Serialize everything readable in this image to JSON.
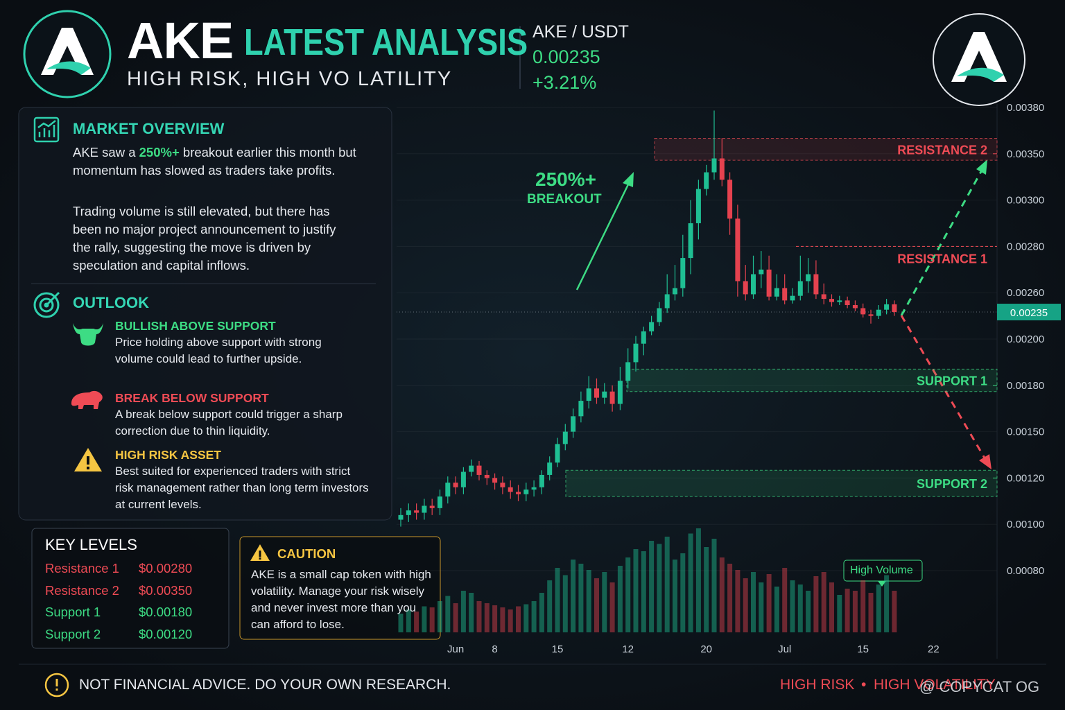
{
  "header": {
    "ticker": "AKE",
    "title": "LATEST ANALYSIS",
    "subtitle": "HIGH RISK, HIGH VO LATILITY",
    "pair": "AKE / USDT",
    "change": "+3.21%"
  },
  "market_overview": {
    "heading": "MARKET OVERVIEW",
    "p1_start": "AKE saw a ",
    "p1_highlight": "250%+",
    "p1_end": " breakout earlier this month but momentum has slowed as traders take profits.",
    "p2": "Trading volume is still elevated, but there has been no major project announcement to justify the rally, suggesting the move is driven by speculation and capital inflows."
  },
  "outlook": {
    "heading": "OUTLOOK",
    "items": [
      {
        "title": "BULLISH ABOVE SUPPORT",
        "text": "Price holding above support with strong volume could lead to further upside."
      },
      {
        "title": "BREAK BELOW SUPPORT",
        "text": "A break below support could trigger a sharp correction due to thin liquidity."
      },
      {
        "title": "HIGH RISK ASSET",
        "text": "Best suited for experienced traders with strict risk management rather than long term investors at current levels."
      }
    ]
  },
  "key_levels": {
    "heading": "KEY LEVELS"
  },
  "caution": {
    "heading": "CAUTION",
    "text": "AKE is a small cap token with high volatility. Manage your risk wisely and never invest more than you can afford to lose."
  },
  "footer": {
    "disclaimer": "NOT FINANCIAL ADVICE. DO YOUR OWN RESEARCH.",
    "tag1": "HIGH RISK",
    "separator": "•",
    "tag2": "HIGH VOLATILITY",
    "watermark": "@ COPYCAT OG"
  },
  "chart_data": {
    "type": "candlestick",
    "categories": [
      null,
      null,
      null,
      null,
      null,
      null,
      null,
      "Jun",
      null,
      null,
      null,
      null,
      "8",
      null,
      null,
      null,
      null,
      null,
      null,
      null,
      "15",
      null,
      null,
      null,
      null,
      null,
      null,
      null,
      null,
      "12",
      null,
      null,
      null,
      null,
      null,
      null,
      null,
      null,
      null,
      "20",
      null,
      null,
      null,
      null,
      null,
      null,
      null,
      null,
      null,
      "Jul",
      null,
      null,
      null,
      null,
      null,
      null,
      null,
      null,
      null,
      "15",
      null,
      null,
      null,
      null,
      null,
      null,
      null,
      null,
      "22",
      null
    ],
    "open": [
      0.00102,
      0.00104,
      0.00106,
      0.00105,
      0.00108,
      0.00107,
      0.00112,
      0.00118,
      0.00116,
      0.00124,
      0.00128,
      0.00122,
      0.0012,
      0.00118,
      0.00116,
      0.00114,
      0.00113,
      0.00115,
      0.00116,
      0.00122,
      0.0013,
      0.00142,
      0.0015,
      0.0016,
      0.0017,
      0.00178,
      0.00172,
      0.00176,
      0.00168,
      0.00182,
      0.0019,
      0.00198,
      0.0021,
      0.00222,
      0.0024,
      0.00258,
      0.00262,
      0.00275,
      0.0029,
      0.00312,
      0.0033,
      0.00345,
      0.00322,
      0.00292,
      0.00265,
      0.00258,
      0.00268,
      0.0027,
      0.00255,
      0.00262,
      0.0025,
      0.00256,
      0.00265,
      0.00268,
      0.00258,
      0.00252,
      0.00248,
      0.0025,
      0.00244,
      0.0024,
      0.00232,
      0.0023,
      0.00238,
      0.00245,
      null,
      null,
      null,
      null,
      null,
      null
    ],
    "high": [
      0.00107,
      0.00109,
      0.00109,
      0.00111,
      0.00111,
      0.00115,
      0.00121,
      0.00121,
      0.00127,
      0.00132,
      0.00131,
      0.00125,
      0.00123,
      0.00121,
      0.00119,
      0.00117,
      0.00118,
      0.00119,
      0.00125,
      0.00134,
      0.00146,
      0.00155,
      0.00165,
      0.00176,
      0.00184,
      0.00183,
      0.00181,
      0.0018,
      0.00188,
      0.00196,
      0.00204,
      0.00216,
      0.0023,
      0.00248,
      0.00268,
      0.00272,
      0.00285,
      0.003,
      0.00322,
      0.00338,
      0.00378,
      0.0036,
      0.0033,
      0.00298,
      0.00272,
      0.00276,
      0.00278,
      0.00276,
      0.00268,
      0.00268,
      0.00262,
      0.00276,
      0.00275,
      0.00274,
      0.00264,
      0.00258,
      0.00256,
      0.00255,
      0.0025,
      0.00246,
      0.00238,
      0.00244,
      0.00252,
      0.0025,
      null,
      null,
      null,
      null,
      null,
      null
    ],
    "low": [
      0.00099,
      0.00101,
      0.00102,
      0.00102,
      0.00104,
      0.00104,
      0.00109,
      0.00113,
      0.00113,
      0.00121,
      0.00119,
      0.00117,
      0.00115,
      0.00113,
      0.00111,
      0.0011,
      0.0011,
      0.00112,
      0.00113,
      0.00119,
      0.00127,
      0.00138,
      0.00146,
      0.00156,
      0.00165,
      0.00168,
      0.00168,
      0.00163,
      0.00164,
      0.00178,
      0.00186,
      0.00193,
      0.00205,
      0.00217,
      0.00234,
      0.0025,
      0.00255,
      0.00268,
      0.00283,
      0.00305,
      0.00322,
      0.00315,
      0.00285,
      0.00255,
      0.0025,
      0.00252,
      0.00262,
      0.0025,
      0.0025,
      0.00245,
      0.00246,
      0.0025,
      0.0026,
      0.00252,
      0.00245,
      0.00242,
      0.00244,
      0.0024,
      0.00236,
      0.00228,
      0.0022,
      0.00226,
      0.00232,
      0.0023,
      null,
      null,
      null,
      null,
      null,
      null
    ],
    "close": [
      0.00104,
      0.00106,
      0.00105,
      0.00108,
      0.00107,
      0.00112,
      0.00118,
      0.00116,
      0.00124,
      0.00128,
      0.00122,
      0.0012,
      0.00118,
      0.00116,
      0.00114,
      0.00113,
      0.00115,
      0.00116,
      0.00122,
      0.0013,
      0.00142,
      0.0015,
      0.0016,
      0.0017,
      0.00178,
      0.00172,
      0.00176,
      0.00168,
      0.00182,
      0.0019,
      0.00198,
      0.0021,
      0.00222,
      0.0024,
      0.00258,
      0.00262,
      0.00275,
      0.0029,
      0.00312,
      0.0033,
      0.00345,
      0.00322,
      0.00292,
      0.00265,
      0.00258,
      0.00268,
      0.0027,
      0.00255,
      0.00262,
      0.0025,
      0.00256,
      0.00265,
      0.00268,
      0.00258,
      0.00252,
      0.00248,
      0.0025,
      0.00244,
      0.0024,
      0.00232,
      0.0023,
      0.00238,
      0.00245,
      0.00235,
      null,
      null,
      null,
      null,
      null,
      null
    ],
    "volume": [
      18,
      22,
      20,
      25,
      24,
      30,
      35,
      28,
      40,
      38,
      30,
      28,
      26,
      24,
      22,
      25,
      27,
      30,
      38,
      50,
      62,
      55,
      70,
      66,
      60,
      52,
      58,
      48,
      64,
      72,
      80,
      78,
      88,
      85,
      92,
      70,
      76,
      95,
      100,
      82,
      90,
      72,
      66,
      60,
      52,
      58,
      48,
      56,
      44,
      62,
      50,
      46,
      40,
      54,
      58,
      48,
      36,
      42,
      40,
      50,
      38,
      46,
      55,
      40,
      null,
      null,
      null,
      null,
      null,
      null
    ],
    "ylim": [
      0.0008,
      0.0038
    ],
    "yticks": [
      {
        "value": 0.0038,
        "label": "0.00380"
      },
      {
        "value": 0.0035,
        "label": "0.00350"
      },
      {
        "value": 0.003,
        "label": "0.00300"
      },
      {
        "value": 0.0028,
        "label": "0.00280"
      },
      {
        "value": 0.0026,
        "label": "0.00260"
      },
      {
        "value": 0.002,
        "label": "0.00200"
      },
      {
        "value": 0.0018,
        "label": "0.00180"
      },
      {
        "value": 0.0015,
        "label": "0.00150"
      },
      {
        "value": 0.0012,
        "label": "0.00120"
      },
      {
        "value": 0.001,
        "label": "0.00100"
      },
      {
        "value": 0.0008,
        "label": "0.00080"
      }
    ],
    "current_price": 0.00235,
    "colors": {
      "up": "#1fbf93",
      "down": "#e5424f"
    },
    "levels": [
      {
        "name": "Resistance 1",
        "chart_label": "RESISTANCE 1",
        "value": 0.0028,
        "value_label": "$0.00280",
        "color": "#ef4b55"
      },
      {
        "name": "Resistance 2",
        "chart_label": "RESISTANCE 2",
        "value": 0.0035,
        "value_label": "$0.00350",
        "zone": [
          0.00343,
          0.0036
        ],
        "color": "#ef4b55"
      },
      {
        "name": "Support 1",
        "chart_label": "SUPPORT 1",
        "value": 0.0018,
        "value_label": "$0.00180",
        "zone": [
          0.00176,
          0.00187
        ],
        "color": "#3ddc84"
      },
      {
        "name": "Support 2",
        "chart_label": "SUPPORT 2",
        "value": 0.0012,
        "value_label": "$0.00120",
        "zone": [
          0.00112,
          0.00125
        ],
        "color": "#3ddc84"
      }
    ],
    "annotations": {
      "breakout_value": "250%+",
      "breakout_label": "BREAKOUT",
      "high_volume": "High Volume"
    }
  }
}
